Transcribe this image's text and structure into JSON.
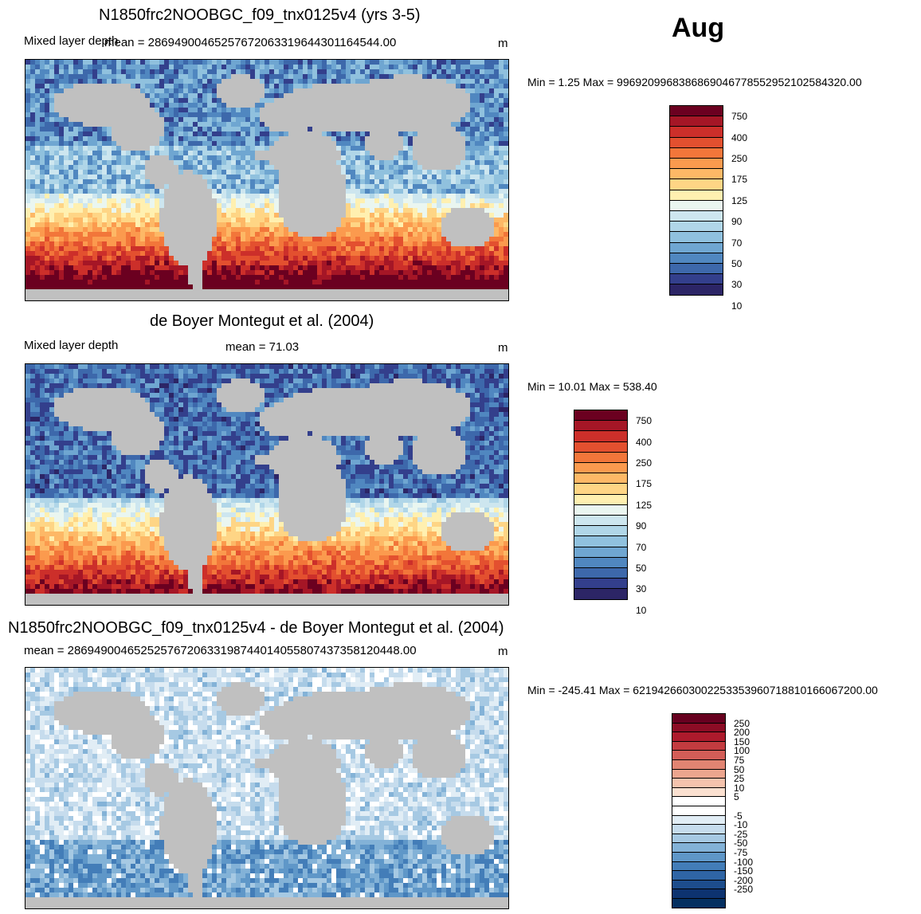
{
  "month": "Aug",
  "panels": [
    {
      "id": "model",
      "title": "N1850frc2NOOBGC_f09_tnx0125v4 (yrs 3-5)",
      "left_label": "Mixed layer depth",
      "mean_text": "mean = 2869490046525767206331964430116454 4.00",
      "units": "m",
      "minmax": "Min =   1.25 Max = 99692099683868690467785529521025843 20.00",
      "palette": "abs"
    },
    {
      "id": "obs",
      "title": "de Boyer Montegut et al. (2004)",
      "left_label": "Mixed layer depth",
      "mean_text": "mean =  71.03",
      "units": "m",
      "minmax": "Min =  10.01 Max = 538.40",
      "palette": "abs"
    },
    {
      "id": "diff",
      "title": "N1850frc2NOOBGC_f09_tnx0125v4 - de Boyer Montegut et al. (2004)",
      "left_label": "",
      "mean_text": "mean = 28694900465252576720633198744014055807437358120448.00",
      "units": "m",
      "minmax": "Min = -245.41 Max = 62194266030022533539607188101660672 00.00",
      "palette": "diff"
    }
  ],
  "colorbar_abs": {
    "colors": [
      "#6b0020",
      "#a51626",
      "#cc2f2a",
      "#e3502f",
      "#f2763a",
      "#fb9a4e",
      "#fdb866",
      "#fed585",
      "#fff0b0",
      "#eaf6f0",
      "#cde6ef",
      "#b0d6e8",
      "#90c1de",
      "#6fa6d1",
      "#5087c0",
      "#3d68ab",
      "#333f8c",
      "#2c2566"
    ],
    "labels": [
      "750",
      "400",
      "250",
      "175",
      "125",
      "90",
      "70",
      "50",
      "30",
      "10"
    ]
  },
  "colorbar_diff": {
    "colors": [
      "#67001f",
      "#8c0c25",
      "#ad1a2c",
      "#c33b3f",
      "#d35d57",
      "#e18472",
      "#eca58e",
      "#f5c3ad",
      "#fbe0d0",
      "#ffffff",
      "#ffffff",
      "#e1edf5",
      "#c6dced",
      "#a6c9e3",
      "#83b2d7",
      "#5f97c8",
      "#437db8",
      "#2f65a5",
      "#1d4d8c",
      "#0d3370",
      "#053061"
    ],
    "labels": [
      "250",
      "200",
      "150",
      "100",
      "75",
      "50",
      "25",
      "10",
      "5",
      "-5",
      "-10",
      "-25",
      "-50",
      "-75",
      "-100",
      "-150",
      "-200",
      "-250"
    ]
  }
}
